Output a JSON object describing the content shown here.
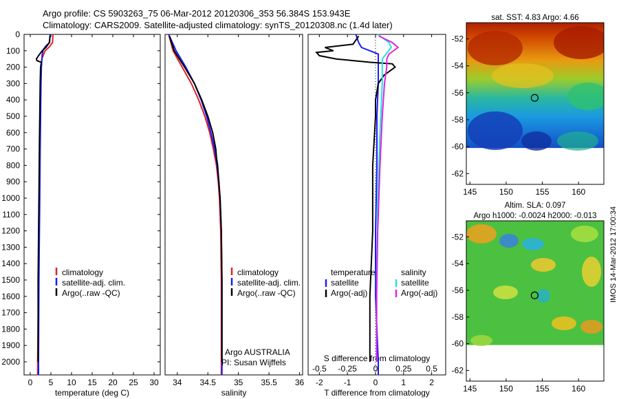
{
  "header": {
    "line1": "Argo profile: CS 5903263_75 06-Mar-2012 20120306_353 56.384S 153.943E",
    "line2": "Climatology: CARS2009. Satellite-adjusted climatology: synTS_20120308.nc (1.4d later)"
  },
  "colors": {
    "climatology": "#e02020",
    "satellite": "#1a1aff",
    "argo": "#000000",
    "sal_satellite": "#22e0e0",
    "sal_argo": "#e020e0"
  },
  "side_stamp": "IMOS 14-Mar-2012 17:00:34",
  "chart_data": [
    {
      "type": "line",
      "name": "temperature-profile",
      "xlabel": "temperature (deg C)",
      "xticks": [
        0,
        5,
        10,
        15,
        20,
        25,
        30
      ],
      "xlim": [
        -1.5,
        31.5
      ],
      "yticks": [
        0,
        100,
        200,
        300,
        400,
        500,
        600,
        700,
        800,
        900,
        1000,
        1100,
        1200,
        1300,
        1400,
        1500,
        1600,
        1700,
        1800,
        1900,
        2000
      ],
      "ylim": [
        0,
        2080
      ],
      "y_reversed": true,
      "legend": [
        "climatology",
        "satellite-adj. clim.",
        "Argo(..raw -QC)"
      ],
      "series": [
        {
          "name": "climatology",
          "depth": [
            0,
            50,
            80,
            100,
            150,
            200,
            300,
            500,
            700,
            1000,
            1500,
            2000,
            2080
          ],
          "values": [
            5.5,
            5.4,
            4.5,
            3.6,
            2.8,
            2.6,
            2.5,
            2.4,
            2.3,
            2.2,
            2.0,
            1.8,
            1.8
          ]
        },
        {
          "name": "satellite-adj. clim.",
          "depth": [
            0,
            50,
            70,
            90,
            120,
            200,
            300,
            500,
            700,
            1000,
            1500,
            2000,
            2080
          ],
          "values": [
            4.8,
            4.7,
            3.8,
            3.2,
            2.9,
            2.7,
            2.6,
            2.5,
            2.4,
            2.3,
            2.1,
            2.0,
            2.0
          ]
        },
        {
          "name": "Argo(..raw -QC)",
          "depth": [
            10,
            50,
            80,
            100,
            130,
            150,
            160,
            170,
            200,
            300,
            500,
            700,
            1000,
            1500,
            2000
          ],
          "values": [
            4.8,
            4.6,
            3.8,
            2.9,
            2.0,
            1.5,
            1.6,
            2.7,
            2.5,
            2.4,
            2.3,
            2.2,
            2.1,
            1.9,
            1.9
          ]
        }
      ]
    },
    {
      "type": "line",
      "name": "salinity-profile",
      "xlabel": "salinity",
      "xticks": [
        34,
        34.5,
        35,
        35.5,
        36
      ],
      "xlim": [
        33.8,
        36.05
      ],
      "yticks": [],
      "ylim": [
        0,
        2080
      ],
      "y_reversed": true,
      "legend": [
        "climatology",
        "satellite-adj. clim.",
        "Argo(..raw -QC)"
      ],
      "annotations": [
        "Argo AUSTRALIA",
        "PI: Susan Wijffels"
      ],
      "series": [
        {
          "name": "climatology",
          "depth": [
            0,
            100,
            200,
            300,
            400,
            500,
            600,
            700,
            800,
            900,
            1000,
            1200,
            1500,
            2000,
            2080
          ],
          "values": [
            33.86,
            33.93,
            34.08,
            34.23,
            34.35,
            34.45,
            34.53,
            34.59,
            34.64,
            34.67,
            34.69,
            34.71,
            34.72,
            34.72,
            34.72
          ]
        },
        {
          "name": "satellite-adj. clim.",
          "depth": [
            0,
            100,
            200,
            300,
            400,
            500,
            600,
            700,
            800,
            900,
            1000,
            1200,
            1500,
            2000,
            2080
          ],
          "values": [
            33.86,
            33.98,
            34.14,
            34.28,
            34.39,
            34.48,
            34.55,
            34.61,
            34.65,
            34.68,
            34.7,
            34.72,
            34.73,
            34.73,
            34.73
          ]
        },
        {
          "name": "Argo(..raw -QC)",
          "depth": [
            10,
            100,
            200,
            300,
            400,
            500,
            600,
            700,
            750,
            800,
            900,
            1000,
            1200,
            1500,
            2000
          ],
          "values": [
            33.87,
            33.95,
            34.12,
            34.28,
            34.4,
            34.5,
            34.58,
            34.63,
            34.64,
            34.66,
            34.68,
            34.7,
            34.72,
            34.73,
            34.73
          ]
        }
      ]
    },
    {
      "type": "line",
      "name": "difference-profile",
      "xlabel": "T difference from climatology",
      "xlabel_top": "S difference from climatology",
      "xticks": [
        -2,
        -1,
        0,
        1,
        2
      ],
      "xticks_top": [
        "-0.5",
        "-0.25",
        "0",
        "0.25",
        "0.5"
      ],
      "xlim": [
        -2.4,
        2.5
      ],
      "yticks": [],
      "ylim": [
        0,
        2080
      ],
      "y_reversed": true,
      "legend": [
        "temperature",
        "satellite",
        "Argo(-adj)",
        "salinity",
        "satellite",
        "Argo(-adj)"
      ],
      "series": [
        {
          "name": "temperature satellite",
          "depth": [
            0,
            50,
            80,
            120,
            200,
            300,
            500,
            800,
            1200,
            1600,
            2000,
            2080
          ],
          "values": [
            -0.7,
            -0.6,
            -0.5,
            0.1,
            0.1,
            0.1,
            0.05,
            0.05,
            0.0,
            0.0,
            0.1,
            0.1
          ]
        },
        {
          "name": "temperature Argo(-adj)",
          "depth": [
            10,
            60,
            80,
            100,
            110,
            130,
            150,
            160,
            170,
            180,
            200,
            250,
            300,
            400,
            500,
            800,
            1200,
            1600,
            2000
          ],
          "values": [
            -0.6,
            -0.8,
            -1.8,
            -1.5,
            -2.1,
            -2.0,
            -1.4,
            -0.8,
            -0.2,
            0.6,
            0.7,
            0.3,
            0.1,
            0.0,
            0.0,
            -0.1,
            -0.1,
            -0.2,
            -0.2
          ]
        },
        {
          "name": "salinity satellite",
          "depth": [
            0,
            50,
            80,
            150,
            300,
            600,
            1000,
            1500,
            2000
          ],
          "values": [
            0.02,
            0.12,
            0.14,
            0.06,
            0.06,
            0.04,
            0.02,
            0.01,
            0.01
          ]
        },
        {
          "name": "salinity Argo(-adj)",
          "depth": [
            10,
            50,
            80,
            120,
            150,
            200,
            300,
            500,
            800,
            1200,
            1600,
            2000
          ],
          "values": [
            0.03,
            0.15,
            0.2,
            0.12,
            0.1,
            0.1,
            0.08,
            0.06,
            0.04,
            0.02,
            0.01,
            0.01
          ]
        }
      ]
    },
    {
      "type": "heatmap",
      "name": "sst-map",
      "title": "sat. SST: 4.83 Argo: 4.66",
      "xticks": [
        145,
        150,
        155,
        160
      ],
      "xlim": [
        144.5,
        163.5
      ],
      "yticks": [
        -52,
        -54,
        -56,
        -58,
        -60,
        -62
      ],
      "ylim": [
        -62.8,
        -50.8
      ],
      "marker": {
        "lon": 153.94,
        "lat": -56.38
      }
    },
    {
      "type": "heatmap",
      "name": "sla-map",
      "title": "Altim. SLA: 0.097",
      "subtitle": "Argo h1000: -0.0024 h2000: -0.013",
      "xticks": [
        145,
        150,
        155,
        160
      ],
      "xlim": [
        144.5,
        163.5
      ],
      "yticks": [
        -52,
        -54,
        -56,
        -58,
        -60,
        -62
      ],
      "ylim": [
        -62.8,
        -50.8
      ],
      "marker": {
        "lon": 153.94,
        "lat": -56.38
      }
    }
  ]
}
